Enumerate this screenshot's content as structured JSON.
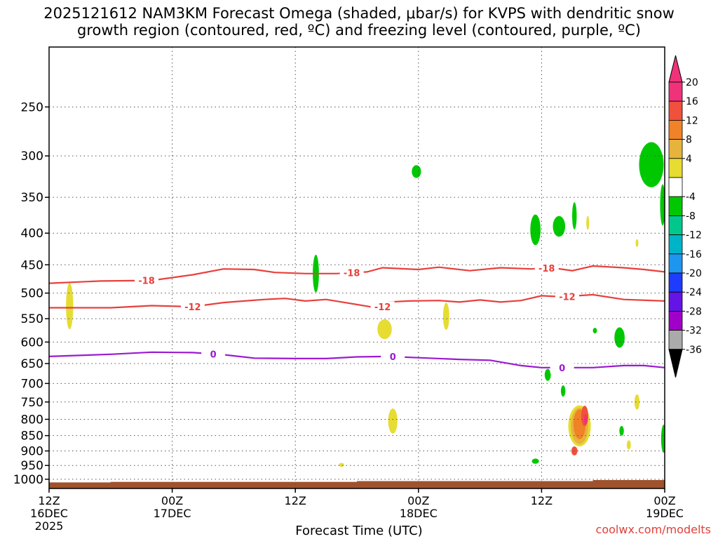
{
  "title": "2025121612 NAM3KM Forecast Omega (shaded, μbar/s) for KVPS with dendritic snow",
  "subtitle": "growth region (contoured, red, ºC) and freezing level (contoured, purple, ºC)",
  "credit": "coolwx.com/modelts",
  "chart_data": {
    "type": "heatmap",
    "xlabel": "Forecast Time (UTC)",
    "ylabel": "",
    "x_ticks": [
      {
        "h": 0,
        "top": "12Z",
        "mid": "16DEC",
        "bot": "2025"
      },
      {
        "h": 12,
        "top": "00Z",
        "mid": "17DEC",
        "bot": ""
      },
      {
        "h": 24,
        "top": "12Z",
        "mid": "",
        "bot": ""
      },
      {
        "h": 36,
        "top": "00Z",
        "mid": "18DEC",
        "bot": ""
      },
      {
        "h": 48,
        "top": "12Z",
        "mid": "",
        "bot": ""
      },
      {
        "h": 60,
        "top": "00Z",
        "mid": "19DEC",
        "bot": ""
      }
    ],
    "y_ticks": [
      250,
      300,
      350,
      400,
      450,
      500,
      550,
      600,
      650,
      700,
      750,
      800,
      850,
      900,
      950,
      1000
    ],
    "ylim": [
      1035,
      200
    ],
    "y_scale": "log",
    "colorbar": {
      "labels": [
        "20",
        "16",
        "12",
        "8",
        "4",
        "-4",
        "-8",
        "-12",
        "-16",
        "-20",
        "-24",
        "-28",
        "-32",
        "-36"
      ],
      "colors": [
        "#f0327a",
        "#f0503c",
        "#f08228",
        "#e6b43c",
        "#e6dc32",
        "#ffffff",
        "#00c800",
        "#00c88c",
        "#00b4c8",
        "#1e96f0",
        "#1e3cff",
        "#6414e6",
        "#a000c8",
        "#aaaaaa"
      ]
    },
    "contours": [
      {
        "label": "-18",
        "color": "#e8403c",
        "label_hours": [
          9.5,
          29.5,
          48.5
        ],
        "points": [
          [
            0,
            482
          ],
          [
            5,
            478
          ],
          [
            10,
            477
          ],
          [
            14,
            467
          ],
          [
            17,
            457
          ],
          [
            20,
            458
          ],
          [
            22,
            463
          ],
          [
            25,
            465
          ],
          [
            28,
            465
          ],
          [
            31,
            462
          ],
          [
            32.5,
            455
          ],
          [
            36,
            458
          ],
          [
            38,
            454
          ],
          [
            41,
            460
          ],
          [
            44,
            455
          ],
          [
            47,
            457
          ],
          [
            49,
            455
          ],
          [
            51,
            460
          ],
          [
            53,
            452
          ],
          [
            56,
            455
          ],
          [
            58,
            458
          ],
          [
            60,
            462
          ]
        ]
      },
      {
        "label": "-12",
        "color": "#e8403c",
        "label_hours": [
          14,
          32.5,
          50.5
        ],
        "points": [
          [
            0,
            528
          ],
          [
            6,
            528
          ],
          [
            10,
            524
          ],
          [
            14,
            526
          ],
          [
            17,
            518
          ],
          [
            19,
            515
          ],
          [
            21,
            512
          ],
          [
            23,
            510
          ],
          [
            25,
            515
          ],
          [
            27,
            512
          ],
          [
            31,
            525
          ],
          [
            32.3,
            530
          ],
          [
            33,
            517
          ],
          [
            35,
            515
          ],
          [
            38,
            514
          ],
          [
            40,
            517
          ],
          [
            42,
            513
          ],
          [
            44,
            517
          ],
          [
            46,
            514
          ],
          [
            48,
            505
          ],
          [
            50,
            507
          ],
          [
            53,
            503
          ],
          [
            56,
            512
          ],
          [
            60,
            515
          ]
        ]
      },
      {
        "label": "0",
        "color": "#9b1ad1",
        "label_hours": [
          16,
          33.5,
          50
        ],
        "points": [
          [
            0,
            633
          ],
          [
            6,
            628
          ],
          [
            10,
            623
          ],
          [
            14,
            624
          ],
          [
            17,
            629
          ],
          [
            20,
            637
          ],
          [
            24,
            638
          ],
          [
            27,
            638
          ],
          [
            30,
            634
          ],
          [
            33,
            633
          ],
          [
            36,
            636
          ],
          [
            40,
            640
          ],
          [
            43,
            642
          ],
          [
            46,
            655
          ],
          [
            48,
            660
          ],
          [
            51,
            660
          ],
          [
            53,
            660
          ],
          [
            56,
            655
          ],
          [
            58,
            655
          ],
          [
            60,
            660
          ]
        ]
      }
    ],
    "omega_features": [
      {
        "h": 2,
        "p": 525,
        "dh": 0.35,
        "dp": 90,
        "level": 4
      },
      {
        "h": 26,
        "p": 465,
        "dh": 0.3,
        "dp": 65,
        "level": -8
      },
      {
        "h": 28.5,
        "p": 948,
        "dh": 0.25,
        "dp": 14,
        "level": 4
      },
      {
        "h": 32.7,
        "p": 572,
        "dh": 0.7,
        "dp": 42,
        "level": 4
      },
      {
        "h": 33.5,
        "p": 805,
        "dh": 0.45,
        "dp": 75,
        "level": 4
      },
      {
        "h": 35.8,
        "p": 318,
        "dh": 0.45,
        "dp": 15,
        "level": -8
      },
      {
        "h": 38.7,
        "p": 545,
        "dh": 0.3,
        "dp": 55,
        "level": 4
      },
      {
        "h": 47.4,
        "p": 395,
        "dh": 0.5,
        "dp": 45,
        "level": -8
      },
      {
        "h": 47.4,
        "p": 935,
        "dh": 0.35,
        "dp": 18,
        "level": -8
      },
      {
        "h": 48.6,
        "p": 678,
        "dh": 0.3,
        "dp": 30,
        "level": -8
      },
      {
        "h": 49.7,
        "p": 390,
        "dh": 0.6,
        "dp": 30,
        "level": -8
      },
      {
        "h": 50.1,
        "p": 720,
        "dh": 0.22,
        "dp": 30,
        "level": -8
      },
      {
        "h": 51.2,
        "p": 375,
        "dh": 0.22,
        "dp": 38,
        "level": -8
      },
      {
        "h": 51.7,
        "p": 820,
        "dh": 1.1,
        "dp": 125,
        "level": 4
      },
      {
        "h": 51.7,
        "p": 820,
        "dh": 0.85,
        "dp": 110,
        "level": 8
      },
      {
        "h": 51.7,
        "p": 815,
        "dh": 0.6,
        "dp": 90,
        "level": 12
      },
      {
        "h": 52.2,
        "p": 790,
        "dh": 0.35,
        "dp": 60,
        "level": 16
      },
      {
        "h": 51.2,
        "p": 900,
        "dh": 0.3,
        "dp": 30,
        "level": 16
      },
      {
        "h": 52.3,
        "p": 800,
        "dh": 0.18,
        "dp": 30,
        "level": 20
      },
      {
        "h": 52.5,
        "p": 385,
        "dh": 0.1,
        "dp": 20,
        "level": 4
      },
      {
        "h": 53.2,
        "p": 575,
        "dh": 0.2,
        "dp": 12,
        "level": -8
      },
      {
        "h": 55.6,
        "p": 590,
        "dh": 0.5,
        "dp": 45,
        "level": -8
      },
      {
        "h": 55.8,
        "p": 835,
        "dh": 0.22,
        "dp": 30,
        "level": -8
      },
      {
        "h": 56.5,
        "p": 880,
        "dh": 0.2,
        "dp": 30,
        "level": 4
      },
      {
        "h": 57.3,
        "p": 750,
        "dh": 0.25,
        "dp": 42,
        "level": 4
      },
      {
        "h": 57.3,
        "p": 415,
        "dh": 0.1,
        "dp": 12,
        "level": 4
      },
      {
        "h": 58.7,
        "p": 310,
        "dh": 1.2,
        "dp": 52,
        "level": -8
      },
      {
        "h": 59.8,
        "p": 360,
        "dh": 0.25,
        "dp": 55,
        "level": -8
      },
      {
        "h": 59.9,
        "p": 860,
        "dh": 0.25,
        "dp": 90,
        "level": -8
      }
    ],
    "terrain_color": "#a0522d",
    "terrain_top": [
      [
        0,
        1012
      ],
      [
        6,
        1012
      ],
      [
        6,
        1010
      ],
      [
        30,
        1010
      ],
      [
        30,
        1007
      ],
      [
        53,
        1007
      ],
      [
        53,
        1003
      ],
      [
        60,
        1003
      ]
    ]
  }
}
